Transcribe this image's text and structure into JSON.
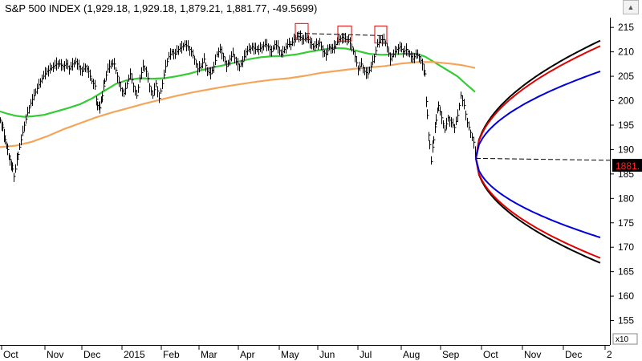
{
  "window": {
    "title": "S&P 500 INDEX (1,929.18, 1,929.18, 1,879.21, 1,881.77, -49.5699)",
    "collapse_icon": "chevron-up-icon"
  },
  "chart_data": {
    "type": "line",
    "title": "S&P 500 INDEX (1,929.18, 1,929.18, 1,879.21, 1,881.77, -49.5699)",
    "y_scale_label": "x10",
    "price_tag": "1881.",
    "ylim": [
      150,
      217
    ],
    "yticks": [
      155,
      160,
      165,
      170,
      175,
      180,
      185,
      190,
      195,
      200,
      205,
      210,
      215
    ],
    "x_labels": [
      "Oct",
      "Nov",
      "Dec",
      "2015",
      "Feb",
      "Mar",
      "Apr",
      "May",
      "Jun",
      "Jul",
      "Aug",
      "Sep",
      "Oct",
      "Nov",
      "Dec",
      "2"
    ],
    "grid": false,
    "price_bars": {
      "points": [
        [
          0,
          196.0
        ],
        [
          3,
          194.5
        ],
        [
          6,
          192.0
        ],
        [
          9,
          190.0
        ],
        [
          12,
          188.0
        ],
        [
          15,
          186.0
        ],
        [
          17,
          184.5
        ],
        [
          19,
          186.0
        ],
        [
          22,
          189.0
        ],
        [
          26,
          192.0
        ],
        [
          30,
          195.0
        ],
        [
          34,
          197.5
        ],
        [
          38,
          199.5
        ],
        [
          42,
          201.0
        ],
        [
          46,
          202.5
        ],
        [
          50,
          204.0
        ],
        [
          54,
          205.0
        ],
        [
          58,
          206.0
        ],
        [
          62,
          206.5
        ],
        [
          66,
          207.0
        ],
        [
          70,
          207.5
        ],
        [
          74,
          207.5
        ],
        [
          78,
          207.0
        ],
        [
          82,
          207.5
        ],
        [
          86,
          206.5
        ],
        [
          90,
          207.5
        ],
        [
          94,
          208.0
        ],
        [
          98,
          207.0
        ],
        [
          102,
          206.0
        ],
        [
          106,
          207.0
        ],
        [
          110,
          206.0
        ],
        [
          114,
          204.0
        ],
        [
          118,
          203.0
        ],
        [
          121,
          199.0
        ],
        [
          124,
          198.5
        ],
        [
          127,
          201.0
        ],
        [
          130,
          204.0
        ],
        [
          134,
          206.5
        ],
        [
          138,
          207.5
        ],
        [
          142,
          207.5
        ],
        [
          146,
          205.0
        ],
        [
          150,
          202.5
        ],
        [
          154,
          201.5
        ],
        [
          158,
          203.5
        ],
        [
          162,
          205.5
        ],
        [
          166,
          203.0
        ],
        [
          170,
          201.0
        ],
        [
          174,
          204.5
        ],
        [
          178,
          207.0
        ],
        [
          182,
          206.0
        ],
        [
          186,
          203.0
        ],
        [
          190,
          201.0
        ],
        [
          194,
          203.5
        ],
        [
          198,
          200.5
        ],
        [
          202,
          203.5
        ],
        [
          206,
          207.0
        ],
        [
          210,
          209.0
        ],
        [
          214,
          210.0
        ],
        [
          218,
          209.5
        ],
        [
          222,
          210.5
        ],
        [
          226,
          211.0
        ],
        [
          230,
          211.5
        ],
        [
          234,
          211.0
        ],
        [
          238,
          210.0
        ],
        [
          242,
          208.5
        ],
        [
          246,
          206.5
        ],
        [
          250,
          207.0
        ],
        [
          254,
          208.5
        ],
        [
          258,
          206.0
        ],
        [
          262,
          205.5
        ],
        [
          266,
          207.0
        ],
        [
          270,
          209.5
        ],
        [
          274,
          210.5
        ],
        [
          278,
          209.0
        ],
        [
          282,
          207.0
        ],
        [
          286,
          208.5
        ],
        [
          290,
          209.5
        ],
        [
          294,
          208.0
        ],
        [
          298,
          207.0
        ],
        [
          302,
          208.0
        ],
        [
          306,
          210.0
        ],
        [
          310,
          210.5
        ],
        [
          314,
          211.0
        ],
        [
          318,
          210.5
        ],
        [
          322,
          210.5
        ],
        [
          326,
          211.0
        ],
        [
          330,
          211.5
        ],
        [
          334,
          211.0
        ],
        [
          338,
          210.0
        ],
        [
          342,
          211.5
        ],
        [
          346,
          211.0
        ],
        [
          350,
          209.5
        ],
        [
          354,
          210.5
        ],
        [
          358,
          211.5
        ],
        [
          362,
          211.5
        ],
        [
          366,
          212.5
        ],
        [
          370,
          213.2
        ],
        [
          374,
          213.0
        ],
        [
          378,
          212.5
        ],
        [
          382,
          213.0
        ],
        [
          386,
          212.0
        ],
        [
          390,
          211.0
        ],
        [
          394,
          211.5
        ],
        [
          398,
          212.0
        ],
        [
          402,
          210.0
        ],
        [
          406,
          209.5
        ],
        [
          410,
          211.0
        ],
        [
          414,
          210.5
        ],
        [
          418,
          211.5
        ],
        [
          422,
          212.5
        ],
        [
          426,
          213.0
        ],
        [
          430,
          212.5
        ],
        [
          434,
          212.5
        ],
        [
          438,
          211.0
        ],
        [
          442,
          209.0
        ],
        [
          446,
          206.5
        ],
        [
          450,
          207.5
        ],
        [
          454,
          206.0
        ],
        [
          458,
          205.5
        ],
        [
          462,
          207.0
        ],
        [
          466,
          209.0
        ],
        [
          470,
          211.5
        ],
        [
          474,
          212.5
        ],
        [
          478,
          212.5
        ],
        [
          482,
          211.0
        ],
        [
          486,
          208.5
        ],
        [
          490,
          209.5
        ],
        [
          494,
          210.5
        ],
        [
          498,
          211.0
        ],
        [
          502,
          210.0
        ],
        [
          506,
          210.5
        ],
        [
          510,
          209.5
        ],
        [
          514,
          208.5
        ],
        [
          518,
          209.5
        ],
        [
          522,
          209.0
        ],
        [
          526,
          207.5
        ],
        [
          529,
          205.5
        ],
        [
          532,
          197.0
        ],
        [
          535,
          191.0
        ],
        [
          537,
          187.5
        ],
        [
          540,
          192.0
        ],
        [
          543,
          196.0
        ],
        [
          546,
          199.0
        ],
        [
          550,
          196.5
        ],
        [
          554,
          194.0
        ],
        [
          558,
          196.5
        ],
        [
          562,
          195.5
        ],
        [
          566,
          194.5
        ],
        [
          570,
          197.0
        ],
        [
          574,
          201.0
        ],
        [
          578,
          199.0
        ],
        [
          582,
          195.5
        ],
        [
          586,
          193.5
        ],
        [
          590,
          191.5
        ],
        [
          593,
          188.2
        ]
      ]
    },
    "series": [
      {
        "name": "",
        "color": "#33cc33",
        "points": [
          [
            0,
            197.8
          ],
          [
            10,
            197.3
          ],
          [
            20,
            196.9
          ],
          [
            30,
            196.7
          ],
          [
            40,
            196.8
          ],
          [
            55,
            197.1
          ],
          [
            70,
            197.8
          ],
          [
            85,
            198.5
          ],
          [
            100,
            199.3
          ],
          [
            115,
            200.5
          ],
          [
            130,
            202.0
          ],
          [
            145,
            203.5
          ],
          [
            160,
            204.3
          ],
          [
            175,
            204.6
          ],
          [
            190,
            204.5
          ],
          [
            205,
            204.6
          ],
          [
            220,
            205.0
          ],
          [
            235,
            205.5
          ],
          [
            250,
            206.2
          ],
          [
            265,
            206.8
          ],
          [
            280,
            207.3
          ],
          [
            295,
            207.9
          ],
          [
            310,
            208.5
          ],
          [
            325,
            208.9
          ],
          [
            340,
            209.1
          ],
          [
            355,
            209.2
          ],
          [
            370,
            209.5
          ],
          [
            385,
            210.0
          ],
          [
            400,
            210.4
          ],
          [
            415,
            210.8
          ],
          [
            430,
            210.7
          ],
          [
            445,
            210.2
          ],
          [
            460,
            209.6
          ],
          [
            475,
            209.4
          ],
          [
            490,
            209.5
          ],
          [
            505,
            209.6
          ],
          [
            520,
            209.6
          ],
          [
            530,
            209.0
          ],
          [
            540,
            208.0
          ],
          [
            550,
            207.0
          ],
          [
            560,
            206.0
          ],
          [
            570,
            205.0
          ],
          [
            580,
            203.5
          ],
          [
            592,
            201.8
          ]
        ]
      },
      {
        "name": "",
        "color": "#f5a55a",
        "points": [
          [
            0,
            190.5
          ],
          [
            20,
            190.8
          ],
          [
            40,
            191.6
          ],
          [
            60,
            192.8
          ],
          [
            80,
            194.2
          ],
          [
            100,
            195.4
          ],
          [
            120,
            196.6
          ],
          [
            140,
            197.6
          ],
          [
            160,
            198.5
          ],
          [
            180,
            199.4
          ],
          [
            200,
            200.2
          ],
          [
            220,
            201.0
          ],
          [
            240,
            201.7
          ],
          [
            260,
            202.3
          ],
          [
            280,
            202.9
          ],
          [
            300,
            203.4
          ],
          [
            320,
            203.9
          ],
          [
            340,
            204.3
          ],
          [
            360,
            204.6
          ],
          [
            380,
            205.1
          ],
          [
            400,
            205.7
          ],
          [
            420,
            206.1
          ],
          [
            440,
            206.5
          ],
          [
            460,
            206.8
          ],
          [
            480,
            207.1
          ],
          [
            500,
            207.6
          ],
          [
            520,
            207.9
          ],
          [
            540,
            207.9
          ],
          [
            560,
            207.6
          ],
          [
            575,
            207.3
          ],
          [
            592,
            206.7
          ]
        ]
      },
      {
        "name": "",
        "color": "#000000",
        "dashed": true,
        "points": [
          [
            371,
            213.8
          ],
          [
            479,
            213.3
          ]
        ]
      },
      {
        "name": "",
        "color": "#000000",
        "dashed": true,
        "points": [
          [
            593,
            188.2
          ],
          [
            760,
            187.8
          ]
        ]
      }
    ],
    "projection_cone": {
      "origin": [
        593,
        188.2
      ],
      "end_x": 748,
      "upper": [
        {
          "color": "#000000",
          "end": 212.3
        },
        {
          "color": "#e00000",
          "end": 211.2
        },
        {
          "color": "#0000dd",
          "end": 206.0
        }
      ],
      "lower": [
        {
          "color": "#000000",
          "end": 166.8
        },
        {
          "color": "#e00000",
          "end": 167.8
        },
        {
          "color": "#0000dd",
          "end": 172.0
        }
      ]
    },
    "annotation_boxes": [
      {
        "x0": 368,
        "x1": 384,
        "y0": 215.8,
        "y1": 212.5
      },
      {
        "x0": 421,
        "x1": 438,
        "y0": 215.3,
        "y1": 212.2
      },
      {
        "x0": 467,
        "x1": 482,
        "y0": 215.3,
        "y1": 211.8
      }
    ]
  }
}
